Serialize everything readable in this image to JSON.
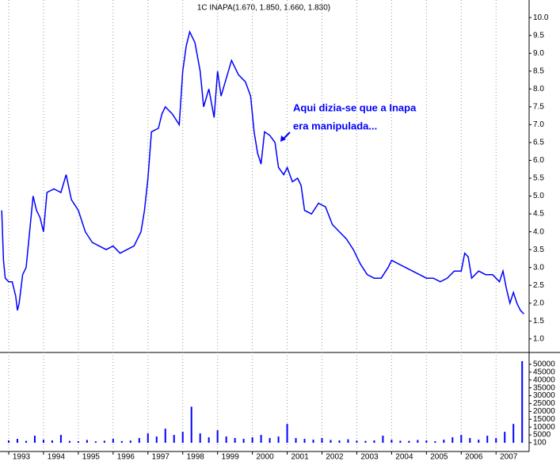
{
  "chart_data": [
    {
      "type": "line",
      "title": "1C INAPA(1.670, 1.850, 1.660, 1.830)",
      "annotation": [
        "Aqui dizia-se que a Inapa",
        "era manipulada..."
      ],
      "xlim": [
        1992.75,
        2007.95
      ],
      "xticks": [
        1993,
        1994,
        1995,
        1996,
        1997,
        1998,
        1999,
        2000,
        2001,
        2002,
        2003,
        2004,
        2005,
        2006,
        2007
      ],
      "ylim": [
        0.73,
        10.27
      ],
      "yticks": [
        {
          "value": 1,
          "label": "1.0"
        },
        1.5,
        {
          "value": 2,
          "label": "2.0"
        },
        2.5,
        {
          "value": 3,
          "label": "3.0"
        },
        3.5,
        {
          "value": 4,
          "label": "4.0"
        },
        4.5,
        {
          "value": 5,
          "label": "5.0"
        },
        5.5,
        {
          "value": 6,
          "label": "6.0"
        },
        6.5,
        {
          "value": 7,
          "label": "7.0"
        },
        7.5,
        {
          "value": 8,
          "label": "8.0"
        },
        8.5,
        {
          "value": 9,
          "label": "9.0"
        },
        9.5,
        {
          "value": 10,
          "label": "10.0"
        }
      ],
      "grid": true,
      "color": "#0000ff",
      "x": [
        1992.8,
        1992.85,
        1992.9,
        1993.0,
        1993.1,
        1993.2,
        1993.25,
        1993.3,
        1993.4,
        1993.5,
        1993.6,
        1993.7,
        1993.8,
        1993.9,
        1994.0,
        1994.1,
        1994.3,
        1994.5,
        1994.65,
        1994.8,
        1995.0,
        1995.2,
        1995.4,
        1995.6,
        1995.8,
        1996.0,
        1996.2,
        1996.4,
        1996.6,
        1996.8,
        1996.9,
        1997.0,
        1997.1,
        1997.3,
        1997.4,
        1997.5,
        1997.7,
        1997.9,
        1998.0,
        1998.1,
        1998.2,
        1998.35,
        1998.5,
        1998.6,
        1998.75,
        1998.9,
        1999.0,
        1999.1,
        1999.25,
        1999.4,
        1999.6,
        1999.8,
        1999.95,
        2000.05,
        2000.15,
        2000.25,
        2000.35,
        2000.5,
        2000.65,
        2000.75,
        2000.9,
        2001.0,
        2001.15,
        2001.3,
        2001.4,
        2001.5,
        2001.7,
        2001.9,
        2002.1,
        2002.3,
        2002.5,
        2002.7,
        2002.9,
        2003.1,
        2003.3,
        2003.5,
        2003.7,
        2003.9,
        2004.0,
        2004.2,
        2004.4,
        2004.6,
        2004.8,
        2005.0,
        2005.2,
        2005.4,
        2005.6,
        2005.8,
        2006.0,
        2006.1,
        2006.2,
        2006.3,
        2006.5,
        2006.7,
        2006.9,
        2007.0,
        2007.1,
        2007.2,
        2007.3,
        2007.4,
        2007.5,
        2007.6,
        2007.7,
        2007.8
      ],
      "values": [
        4.6,
        3.2,
        2.7,
        2.6,
        2.6,
        2.2,
        1.8,
        2.0,
        2.8,
        3.0,
        4.0,
        5.0,
        4.6,
        4.4,
        4.0,
        5.1,
        5.2,
        5.1,
        5.6,
        4.9,
        4.6,
        4.0,
        3.7,
        3.6,
        3.5,
        3.6,
        3.4,
        3.5,
        3.6,
        4.0,
        4.6,
        5.5,
        6.8,
        6.9,
        7.3,
        7.5,
        7.3,
        7.0,
        8.5,
        9.2,
        9.6,
        9.3,
        8.5,
        7.5,
        8.0,
        7.2,
        8.5,
        7.8,
        8.3,
        8.8,
        8.4,
        8.2,
        7.8,
        6.8,
        6.2,
        5.9,
        6.8,
        6.7,
        6.5,
        5.8,
        5.6,
        5.8,
        5.4,
        5.5,
        5.3,
        4.6,
        4.5,
        4.8,
        4.7,
        4.2,
        4.0,
        3.8,
        3.5,
        3.1,
        2.8,
        2.7,
        2.7,
        3.0,
        3.2,
        3.1,
        3.0,
        2.9,
        2.8,
        2.7,
        2.7,
        2.6,
        2.7,
        2.9,
        2.9,
        3.4,
        3.3,
        2.7,
        2.9,
        2.8,
        2.8,
        2.7,
        2.6,
        2.9,
        2.4,
        2.0,
        2.3,
        2.0,
        1.8,
        1.7
      ]
    },
    {
      "type": "bar",
      "color": "#0000ff",
      "ylim": [
        0,
        56000
      ],
      "yticks": [
        100,
        5000,
        10000,
        15000,
        20000,
        25000,
        30000,
        35000,
        40000,
        45000,
        50000
      ],
      "x": [
        1993.0,
        1993.25,
        1993.5,
        1993.75,
        1994.0,
        1994.25,
        1994.5,
        1994.75,
        1995.0,
        1995.25,
        1995.5,
        1995.75,
        1996.0,
        1996.25,
        1996.5,
        1996.75,
        1997.0,
        1997.25,
        1997.5,
        1997.75,
        1998.0,
        1998.25,
        1998.5,
        1998.75,
        1999.0,
        1999.25,
        1999.5,
        1999.75,
        2000.0,
        2000.25,
        2000.5,
        2000.75,
        2001.0,
        2001.25,
        2001.5,
        2001.75,
        2002.0,
        2002.25,
        2002.5,
        2002.75,
        2003.0,
        2003.25,
        2003.5,
        2003.75,
        2004.0,
        2004.25,
        2004.5,
        2004.75,
        2005.0,
        2005.25,
        2005.5,
        2005.75,
        2006.0,
        2006.25,
        2006.5,
        2006.75,
        2007.0,
        2007.25,
        2007.5,
        2007.75
      ],
      "values": [
        1500,
        2500,
        1200,
        4500,
        2000,
        1500,
        5000,
        1200,
        1000,
        1800,
        900,
        1300,
        2500,
        1100,
        1400,
        3000,
        6000,
        4000,
        9000,
        5000,
        7000,
        23000,
        6000,
        3500,
        8000,
        4000,
        3000,
        2500,
        3500,
        5000,
        3000,
        4000,
        12000,
        3000,
        2500,
        2000,
        3000,
        1800,
        1500,
        2200,
        1400,
        1200,
        1500,
        4500,
        2000,
        1300,
        1200,
        1800,
        1500,
        1000,
        2000,
        3500,
        5000,
        3000,
        2000,
        4500,
        3000,
        7000,
        12000,
        52000
      ]
    }
  ]
}
